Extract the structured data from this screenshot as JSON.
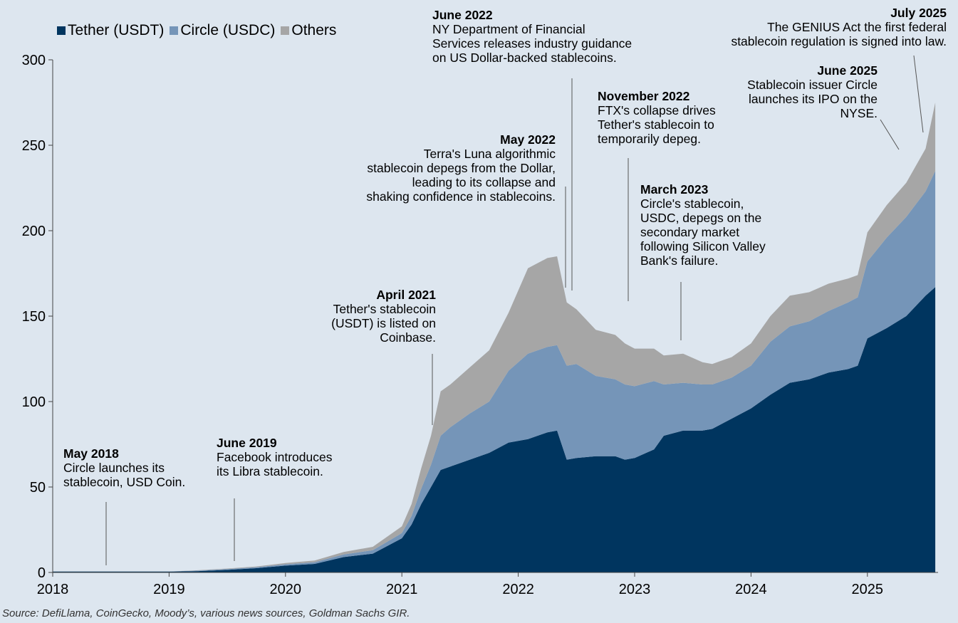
{
  "chart_data": {
    "type": "area",
    "stacked": true,
    "x_label": "",
    "y_label": "",
    "ylim": [
      0,
      300
    ],
    "y_ticks": [
      "0",
      "50",
      "100",
      "150",
      "200",
      "250",
      "300"
    ],
    "x_ticks": [
      "2018",
      "2019",
      "2020",
      "2021",
      "2022",
      "2023",
      "2024",
      "2025"
    ],
    "grid": false,
    "legend_position": "top-left",
    "x": [
      "2018-01",
      "2018-06",
      "2019-01",
      "2019-04",
      "2019-07",
      "2019-10",
      "2020-01",
      "2020-04",
      "2020-07",
      "2020-10",
      "2021-01",
      "2021-02",
      "2021-03",
      "2021-04",
      "2021-05",
      "2021-06",
      "2021-08",
      "2021-10",
      "2021-12",
      "2022-02",
      "2022-04",
      "2022-05",
      "2022-06",
      "2022-07",
      "2022-09",
      "2022-11",
      "2022-12",
      "2023-01",
      "2023-03",
      "2023-04",
      "2023-06",
      "2023-08",
      "2023-09",
      "2023-11",
      "2024-01",
      "2024-03",
      "2024-05",
      "2024-07",
      "2024-09",
      "2024-11",
      "2024-12",
      "2025-01",
      "2025-03",
      "2025-05",
      "2025-07",
      "2025-08"
    ],
    "series": [
      {
        "name": "Tether (USDT)",
        "color": "#00355f",
        "values": [
          0.5,
          0.5,
          0.5,
          0.8,
          1.5,
          2.5,
          4,
          5,
          9,
          11,
          20,
          28,
          40,
          50,
          60,
          62,
          66,
          70,
          76,
          78,
          82,
          83,
          66,
          67,
          68,
          68,
          66,
          67,
          72,
          80,
          83,
          83,
          84,
          90,
          96,
          104,
          111,
          113,
          117,
          119,
          121,
          137,
          143,
          150,
          162,
          167
        ]
      },
      {
        "name": "Circle (USDC)",
        "color": "#7595b8",
        "values": [
          0,
          0,
          0,
          0.3,
          0.5,
          0.6,
          0.8,
          1,
          1.5,
          2,
          3,
          5,
          9,
          13,
          20,
          23,
          27,
          30,
          42,
          50,
          50,
          50,
          55,
          55,
          47,
          45,
          44,
          42,
          40,
          30,
          28,
          27,
          26,
          24,
          25,
          31,
          33,
          34,
          36,
          39,
          40,
          45,
          53,
          58,
          61,
          68
        ]
      },
      {
        "name": "Others",
        "color": "#a6a6a6",
        "values": [
          0,
          0,
          0,
          0.2,
          0.3,
          0.4,
          0.7,
          1,
          1.5,
          2,
          4,
          7,
          12,
          17,
          26,
          25,
          27,
          30,
          34,
          50,
          52,
          52,
          37,
          32,
          27,
          26,
          24,
          22,
          19,
          17,
          17,
          13,
          12,
          12,
          13,
          15,
          18,
          17,
          16,
          14,
          13,
          17,
          19,
          20,
          25,
          40
        ]
      }
    ],
    "annotations": [
      {
        "date": "May 2018",
        "text": "Circle launches its\nstablecoin, USD Coin."
      },
      {
        "date": "June 2019",
        "text": "Facebook introduces\nits Libra stablecoin."
      },
      {
        "date": "April 2021",
        "text": "Tether's stablecoin\n(USDT) is listed on\nCoinbase."
      },
      {
        "date": "May 2022",
        "text": "Terra's Luna algorithmic\nstablecoin depegs from the Dollar,\nleading to its collapse and\nshaking confidence in stablecoins."
      },
      {
        "date": "June 2022",
        "text": "NY Department of Financial\nServices releases industry guidance\non US Dollar-backed stablecoins."
      },
      {
        "date": "November 2022",
        "text": "FTX's collapse drives\nTether's stablecoin to\ntemporarily depeg."
      },
      {
        "date": "March 2023",
        "text": "Circle's stablecoin,\nUSDC, depegs on the\nsecondary market\nfollowing Silicon Valley\nBank's failure."
      },
      {
        "date": "June 2025",
        "text": "Stablecoin issuer Circle\nlaunches its IPO on the\nNYSE."
      },
      {
        "date": "July 2025",
        "text": "The GENIUS Act the first federal\nstablecoin regulation is signed into law."
      }
    ],
    "source": "Source: DefiLlama, CoinGecko, Moody’s, various news sources, Goldman Sachs GIR."
  }
}
